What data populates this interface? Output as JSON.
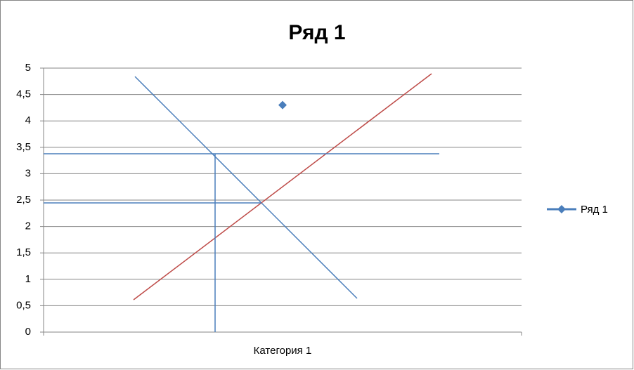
{
  "chart_data": {
    "type": "line",
    "title": "Ряд 1",
    "categories": [
      "Категория 1"
    ],
    "series": [
      {
        "name": "Ряд 1",
        "color": "#4a7ebb",
        "values": [
          4.3
        ]
      }
    ],
    "ylim": [
      0,
      5
    ],
    "yticks": [
      0,
      {
        "value": 0.5,
        "label": "0,5"
      },
      1,
      {
        "value": 1.5,
        "label": "1,5"
      },
      2,
      {
        "value": 2.5,
        "label": "2,5"
      },
      3,
      {
        "value": 3.5,
        "label": "3,5"
      },
      4,
      {
        "value": 4.5,
        "label": "4,5"
      },
      5
    ],
    "grid": true,
    "legend": "right"
  }
}
